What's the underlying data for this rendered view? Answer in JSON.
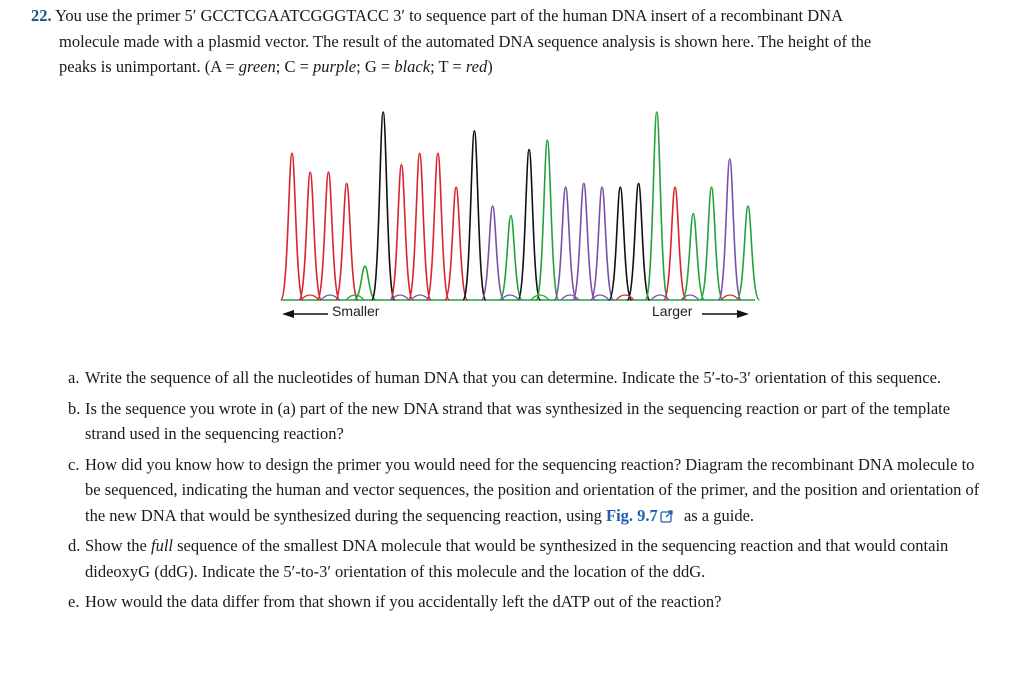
{
  "problem": {
    "number": "22.",
    "line1": "You use the primer 5′ GCCTCGAATCGGGTACC 3′ to sequence part of the human DNA insert of a recombinant DNA",
    "line2": "molecule made with a plasmid vector. The result of the automated DNA sequence analysis is shown here. The height of the",
    "line3_pre": "peaks is unimportant. (A = ",
    "a_color": "green",
    "sep1": "; C = ",
    "c_color": "purple",
    "sep2": "; G = ",
    "g_color": "black",
    "sep3": "; T = ",
    "t_color": "red",
    "line3_post": ")"
  },
  "chromatogram": {
    "left_label": "Smaller",
    "right_label": "Larger",
    "colors": {
      "A": "#22a33a",
      "C": "#7a4fa8",
      "G": "#111111",
      "T": "#d9232e"
    },
    "peak_order": [
      "T",
      "T",
      "T",
      "T",
      "A",
      "G",
      "T",
      "T",
      "T",
      "T",
      "G",
      "C",
      "A",
      "G",
      "A",
      "C",
      "C",
      "C",
      "G",
      "G",
      "A",
      "T",
      "A",
      "A",
      "C",
      "A"
    ],
    "peak_levels": [
      0.78,
      0.68,
      0.68,
      0.62,
      0.18,
      1.0,
      0.72,
      0.78,
      0.78,
      0.6,
      0.9,
      0.5,
      0.45,
      0.8,
      0.85,
      0.6,
      0.62,
      0.6,
      0.6,
      0.62,
      1.0,
      0.6,
      0.46,
      0.6,
      0.75,
      0.5
    ]
  },
  "questions": [
    {
      "letter": "a.",
      "text": "Write the sequence of all the nucleotides of human DNA that you can determine. Indicate the 5′-to-3′ orientation of this sequence."
    },
    {
      "letter": "b.",
      "text": "Is the sequence you wrote in (a) part of the new DNA strand that was synthesized in the sequencing reaction or part of the template strand used in the sequencing reaction?"
    },
    {
      "letter": "c.",
      "text": "How did you know how to design the primer you would need for the sequencing reaction? Diagram the recombinant DNA molecule to be sequenced, indicating the human and vector sequences, the position and orientation of the primer, and the position and orientation of the new DNA that would be synthesized during the sequencing reaction, using ",
      "link": "Fig. 9.7",
      "after": " as a guide."
    },
    {
      "letter": "d.",
      "pre": "Show the ",
      "em": "full",
      "post": " sequence of the smallest DNA molecule that would be synthesized in the sequencing reaction and that would contain dideoxyG (ddG). Indicate the 5′-to-3′ orientation of this molecule and the location of the ddG."
    },
    {
      "letter": "e.",
      "text": "How would the data differ from that shown if you accidentally left the dATP out of the reaction?"
    }
  ]
}
